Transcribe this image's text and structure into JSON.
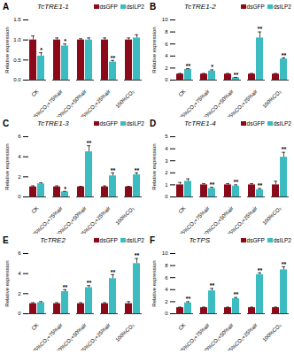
{
  "chart_data": [
    {
      "type": "bar",
      "panel": "A",
      "title": "TcTRE1-1",
      "ylabel": "Relative expression",
      "categories": [
        "CK",
        "25%CO₂+75%air",
        "50%CO₂+50%air",
        "75%CO₂+25%air",
        "100%CO₂"
      ],
      "series": [
        {
          "name": "dsGFP",
          "color": "#8b0a1a",
          "values": [
            1.0,
            1.0,
            1.0,
            1.0,
            1.0
          ],
          "errors": [
            0.1,
            0.05,
            0.03,
            0.05,
            0.05
          ]
        },
        {
          "name": "dsILP2",
          "color": "#3cbcc0",
          "values": [
            0.6,
            0.85,
            1.0,
            0.45,
            1.05
          ],
          "errors": [
            0.08,
            0.05,
            0.05,
            0.04,
            0.08
          ],
          "significance": [
            "*",
            "*",
            null,
            "**",
            null
          ]
        }
      ],
      "ylim": [
        0,
        1.5
      ],
      "yticks": [
        {
          "value": 0,
          "label": "0.0"
        },
        0.5,
        {
          "value": 1,
          "label": "1.0"
        },
        1.5
      ],
      "legend": "top-right"
    },
    {
      "type": "bar",
      "panel": "B",
      "title": "TcTRE1-2",
      "ylabel": "Relative expression",
      "categories": [
        "CK",
        "25%CO₂+75%air",
        "50%CO₂+50%air",
        "75%CO₂+25%air",
        "100%CO₂"
      ],
      "series": [
        {
          "name": "dsGFP",
          "color": "#8b0a1a",
          "values": [
            1.0,
            1.0,
            1.0,
            1.0,
            1.0
          ],
          "errors": [
            0.1,
            0.1,
            0.1,
            0.1,
            0.1
          ]
        },
        {
          "name": "dsILP2",
          "color": "#3cbcc0",
          "values": [
            1.8,
            1.5,
            0.4,
            7.0,
            3.5
          ],
          "errors": [
            0.1,
            0.2,
            0.05,
            1.0,
            0.2
          ],
          "significance": [
            "**",
            "*",
            "**",
            "**",
            "**"
          ]
        }
      ],
      "ylim": [
        0,
        10
      ],
      "yticks": [
        0,
        2,
        4,
        6,
        8,
        10
      ],
      "legend": "top-right"
    },
    {
      "type": "bar",
      "panel": "C",
      "title": "TcTRE1-3",
      "ylabel": "Relative expression",
      "categories": [
        "CK",
        "25%CO₂+75%air",
        "50%CO₂+50%air",
        "75%CO₂+25%air",
        "100%CO₂"
      ],
      "series": [
        {
          "name": "dsGFP",
          "color": "#8b0a1a",
          "values": [
            1.0,
            1.0,
            1.0,
            1.0,
            1.0
          ],
          "errors": [
            0.1,
            0.1,
            0.05,
            0.1,
            0.05
          ]
        },
        {
          "name": "dsILP2",
          "color": "#3cbcc0",
          "values": [
            1.3,
            0.5,
            4.5,
            2.1,
            2.2
          ],
          "errors": [
            0.1,
            0.05,
            0.6,
            0.3,
            0.2
          ],
          "significance": [
            null,
            "*",
            "**",
            "**",
            "**"
          ]
        }
      ],
      "ylim": [
        0,
        6
      ],
      "yticks": [
        0,
        2,
        4,
        6
      ],
      "legend": "top-right"
    },
    {
      "type": "bar",
      "panel": "D",
      "title": "TcTRE1-4",
      "ylabel": "Relative expression",
      "categories": [
        "CK",
        "25%CO₂+75%air",
        "50%CO₂+50%air",
        "75%CO₂+25%air",
        "100%CO₂"
      ],
      "series": [
        {
          "name": "dsGFP",
          "color": "#8b0a1a",
          "values": [
            1.0,
            1.0,
            1.0,
            1.0,
            1.0
          ],
          "errors": [
            0.2,
            0.1,
            0.1,
            0.1,
            0.3
          ]
        },
        {
          "name": "dsILP2",
          "color": "#3cbcc0",
          "values": [
            1.3,
            0.7,
            0.9,
            0.6,
            3.3
          ],
          "errors": [
            0.2,
            0.1,
            0.1,
            0.1,
            0.4
          ],
          "significance": [
            null,
            "**",
            "**",
            "**",
            "**"
          ]
        }
      ],
      "ylim": [
        0,
        5
      ],
      "yticks": [
        0,
        1,
        2,
        3,
        4,
        5
      ],
      "legend": "top-right"
    },
    {
      "type": "bar",
      "panel": "E",
      "title": "TcTRE2",
      "ylabel": "Relative expression",
      "categories": [
        "CK",
        "25%CO₂+75%air",
        "50%CO₂+50%air",
        "75%CO₂+25%air",
        "100%CO₂"
      ],
      "series": [
        {
          "name": "dsGFP",
          "color": "#8b0a1a",
          "values": [
            1.0,
            1.0,
            1.0,
            1.0,
            1.0
          ],
          "errors": [
            0.1,
            0.1,
            0.1,
            0.1,
            0.2
          ]
        },
        {
          "name": "dsILP2",
          "color": "#3cbcc0",
          "values": [
            1.1,
            2.2,
            2.6,
            3.5,
            5.0
          ],
          "errors": [
            0.1,
            0.2,
            0.2,
            0.4,
            0.5
          ],
          "significance": [
            null,
            "**",
            "**",
            "**",
            "**"
          ]
        }
      ],
      "ylim": [
        0,
        6
      ],
      "yticks": [
        0,
        2,
        4,
        6
      ],
      "legend": "top-right"
    },
    {
      "type": "bar",
      "panel": "F",
      "title": "TcTPS",
      "ylabel": "Relative expression",
      "categories": [
        "CK",
        "25%CO₂+75%air",
        "50%CO₂+50%air",
        "75%CO₂+25%air",
        "100%CO₂"
      ],
      "series": [
        {
          "name": "dsGFP",
          "color": "#8b0a1a",
          "values": [
            1.0,
            1.0,
            1.0,
            1.0,
            1.0
          ],
          "errors": [
            0.1,
            0.1,
            0.1,
            0.1,
            0.1
          ]
        },
        {
          "name": "dsILP2",
          "color": "#3cbcc0",
          "values": [
            1.8,
            3.8,
            2.5,
            6.5,
            7.3
          ],
          "errors": [
            0.2,
            0.4,
            0.2,
            0.3,
            0.5
          ],
          "significance": [
            "**",
            "**",
            "**",
            "**",
            "**"
          ]
        }
      ],
      "ylim": [
        0,
        10
      ],
      "yticks": [
        0,
        2,
        4,
        6,
        8,
        10
      ],
      "legend": "top-right"
    }
  ]
}
